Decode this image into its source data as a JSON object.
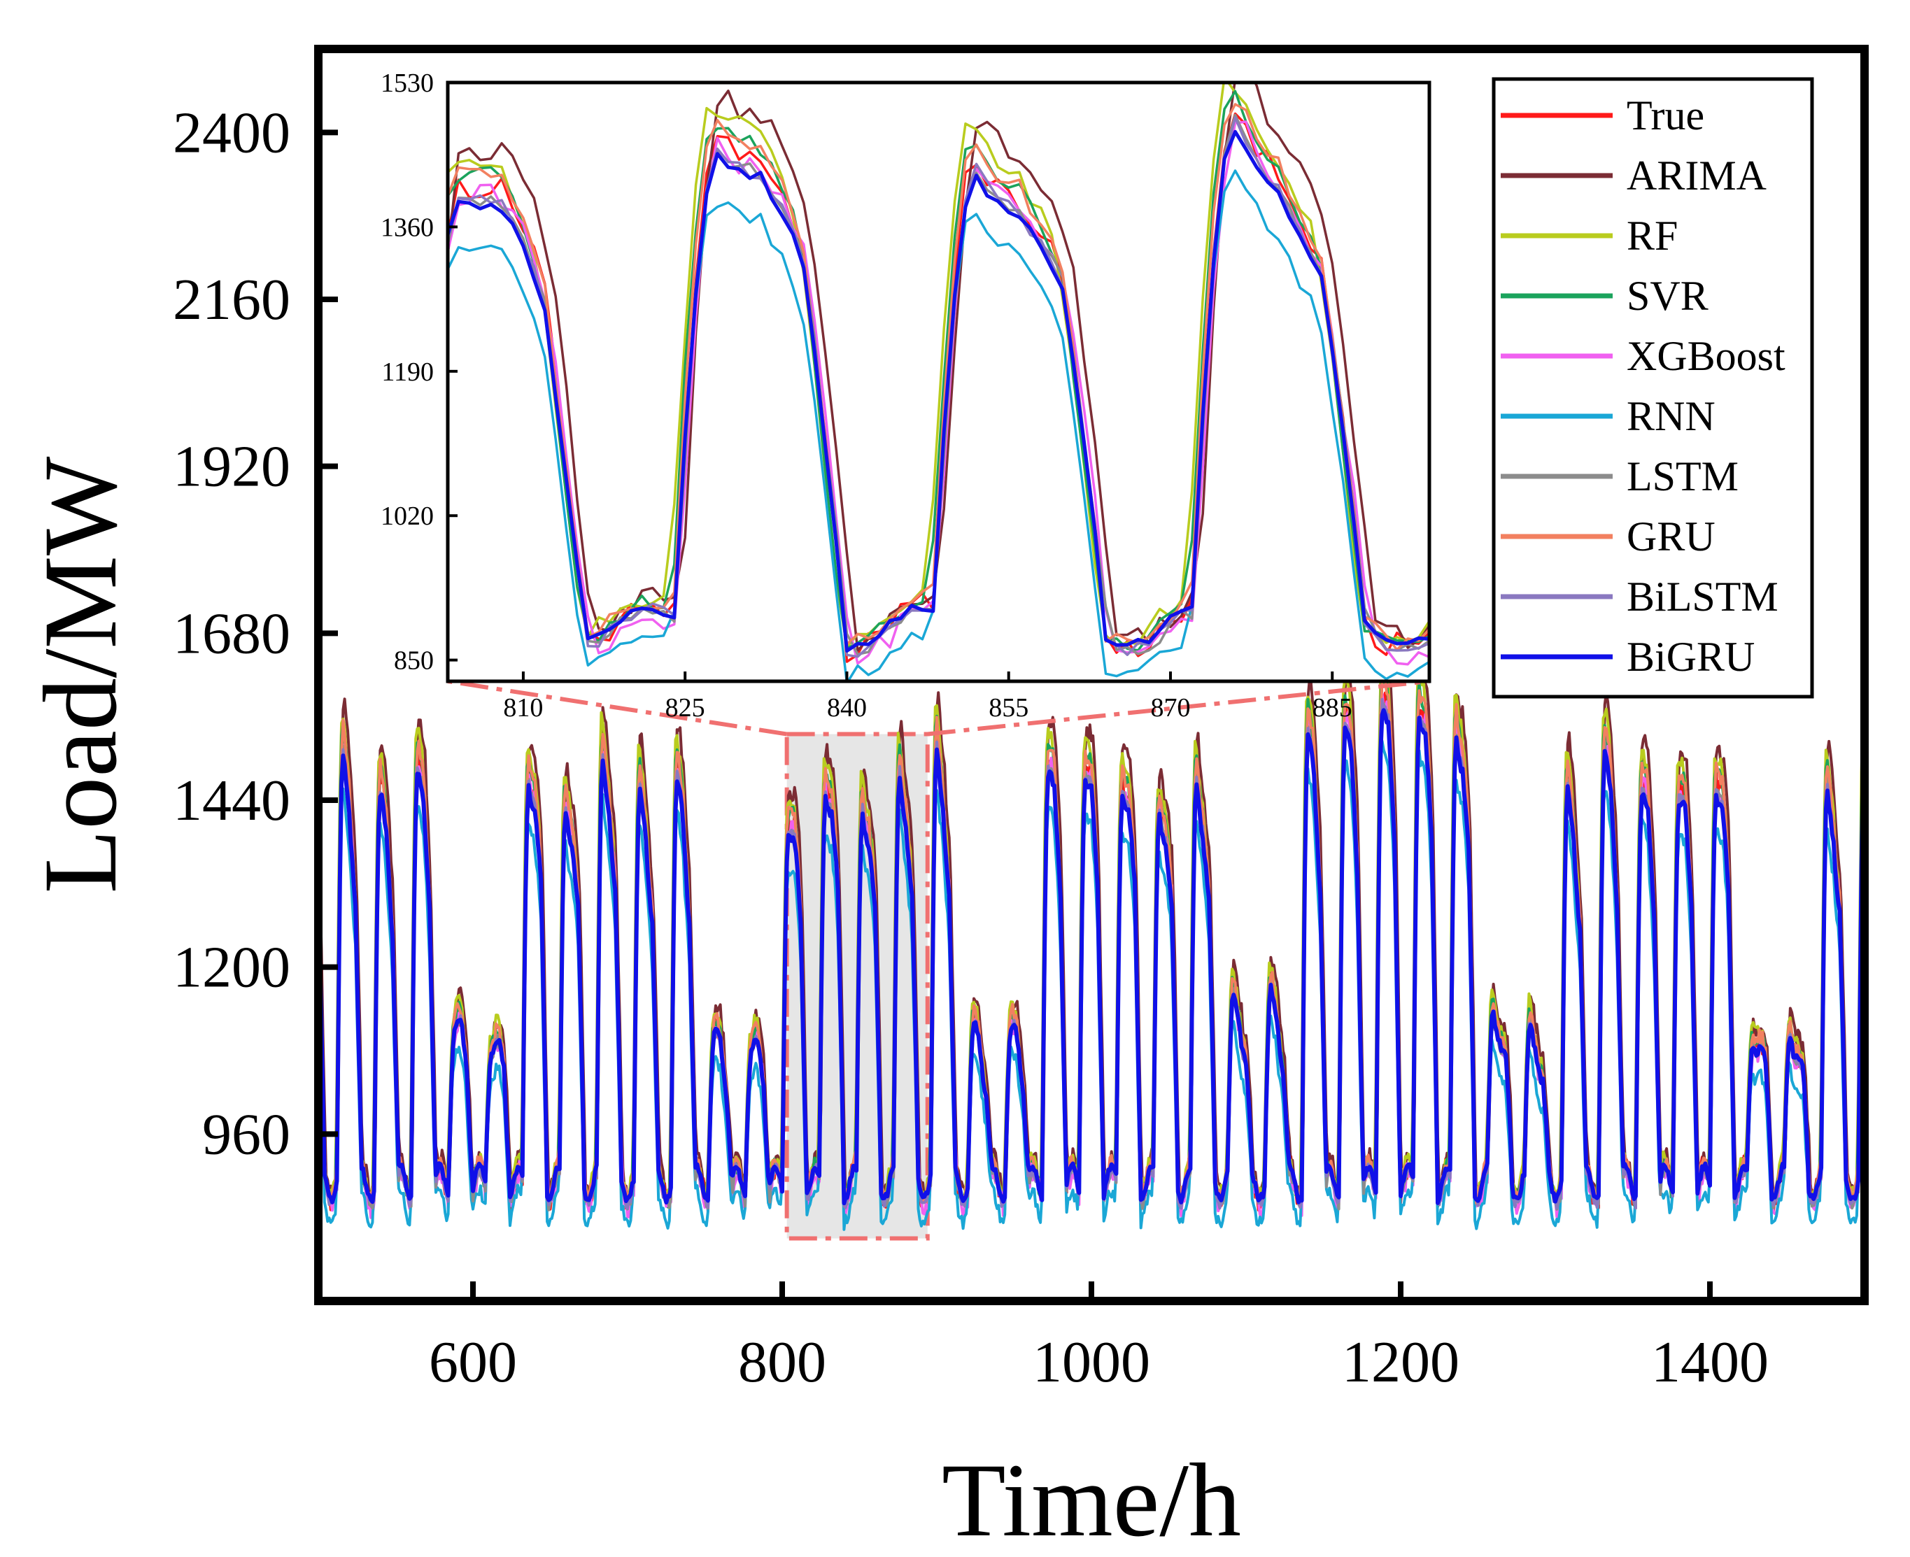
{
  "chart_data": {
    "type": "line",
    "xlabel": "Time/h",
    "ylabel": "Load/MW",
    "xlim": [
      500,
      1500
    ],
    "ylim": [
      720,
      2520
    ],
    "x_ticks": [
      600,
      800,
      1000,
      1200,
      1400
    ],
    "y_ticks": [
      960,
      1200,
      1440,
      1680,
      1920,
      2160,
      2400
    ],
    "grid": false,
    "legend_placement": "top-right",
    "highlight_range": [
      803,
      894
    ],
    "series": [
      {
        "name": "True",
        "color": "#ff1a1a"
      },
      {
        "name": "ARIMA",
        "color": "#7b2c34"
      },
      {
        "name": "RF",
        "color": "#b9cc1e"
      },
      {
        "name": "SVR",
        "color": "#1ba35c"
      },
      {
        "name": "XGBoost",
        "color": "#f060f0"
      },
      {
        "name": "RNN",
        "color": "#1aa7d6"
      },
      {
        "name": "LSTM",
        "color": "#8c8c8c"
      },
      {
        "name": "GRU",
        "color": "#f28060"
      },
      {
        "name": "BiLSTM",
        "color": "#8a78c0"
      },
      {
        "name": "BiGRU",
        "color": "#1010e8"
      }
    ],
    "inset": {
      "xlim": [
        803,
        894
      ],
      "ylim": [
        825,
        1530
      ],
      "x_ticks": [
        810,
        825,
        840,
        855,
        870,
        885
      ],
      "y_ticks": [
        850,
        1020,
        1190,
        1360,
        1530
      ]
    }
  }
}
